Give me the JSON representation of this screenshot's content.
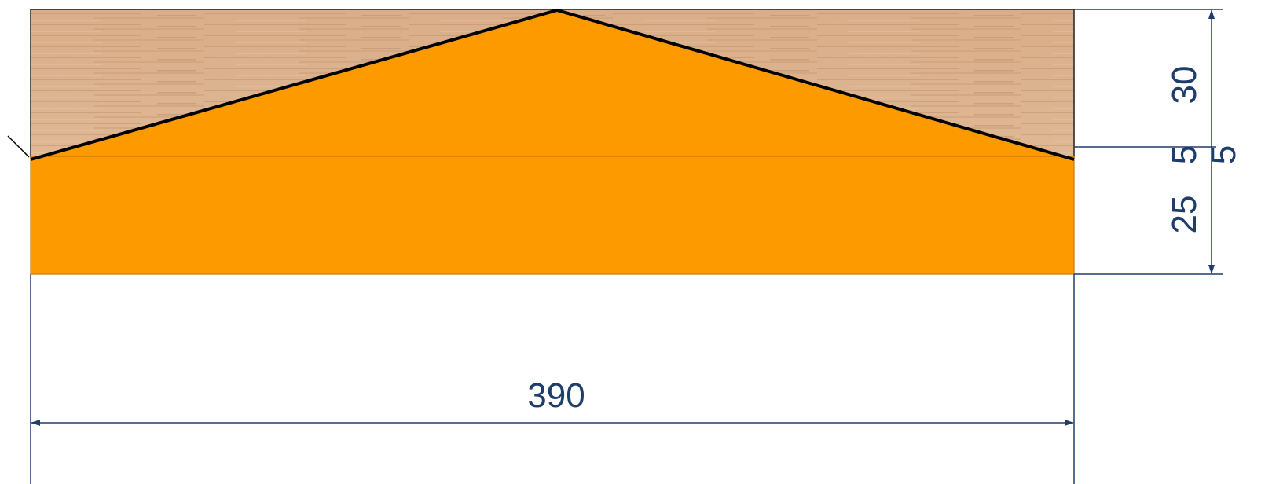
{
  "dimensions": {
    "width": "390",
    "top_height": "30",
    "step_inner": "5",
    "bottom_height": "25",
    "step_outer": "5"
  }
}
